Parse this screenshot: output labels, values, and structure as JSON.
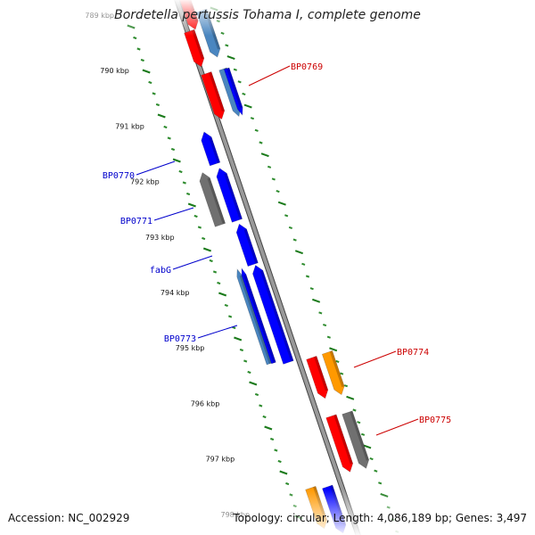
{
  "title": "Bordetella pertussis Tohama I, complete genome",
  "footer": {
    "accession": "Accession: NC_002929",
    "summary": "Topology: circular; Length: 4,086,189 bp; Genes: 3,497"
  },
  "colors": {
    "backbone": "#888888",
    "tick_major": "#1a7a1a",
    "tick_minor": "#2e8b2e",
    "forward_label": "#cc0000",
    "reverse_label": "#0000cc",
    "red": "#ff0000",
    "blue": "#0000ff",
    "steelblue": "#4a86c0",
    "gray": "#707070",
    "orange": "#ff9900"
  },
  "ticks": [
    "789 kbp",
    "790 kbp",
    "791 kbp",
    "792 kbp",
    "793 kbp",
    "794 kbp",
    "795 kbp",
    "796 kbp",
    "797 kbp",
    "798 kbp"
  ],
  "gene_labels": [
    {
      "text": "BP0769",
      "strand": "forward"
    },
    {
      "text": "BP0770",
      "strand": "reverse"
    },
    {
      "text": "BP0771",
      "strand": "reverse"
    },
    {
      "text": "fabG",
      "strand": "reverse"
    },
    {
      "text": "BP0773",
      "strand": "reverse"
    },
    {
      "text": "BP0774",
      "strand": "forward"
    },
    {
      "text": "BP0775",
      "strand": "forward"
    }
  ]
}
